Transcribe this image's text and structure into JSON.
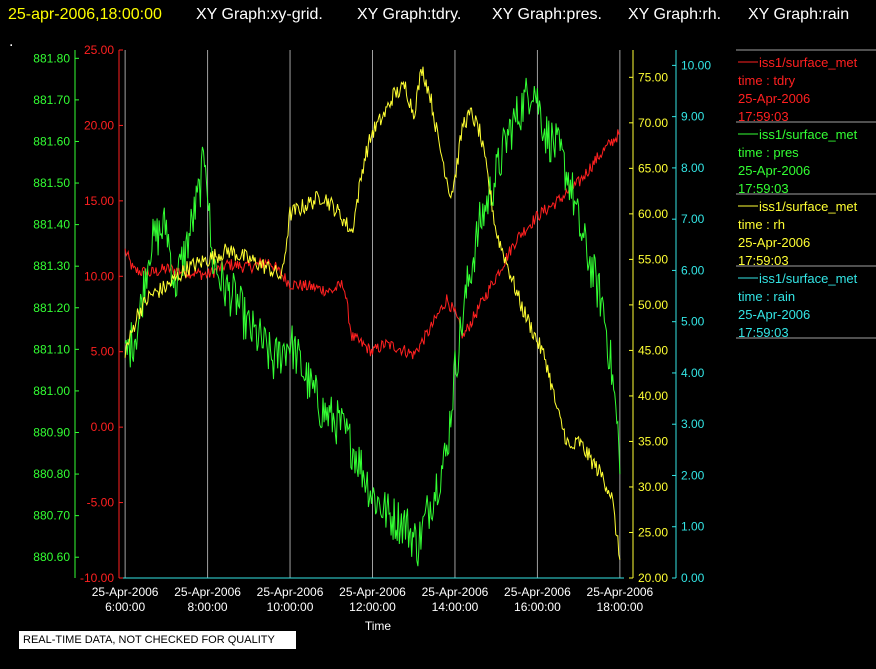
{
  "header": {
    "date": "25-apr-2006,18:00:00",
    "graphs": [
      "XY Graph:xy-grid.",
      "XY Graph:tdry.",
      "XY Graph:pres.",
      "XY Graph:rh.",
      "XY Graph:rain"
    ],
    "dot": "."
  },
  "footer": {
    "note": "REAL-TIME DATA, NOT CHECKED FOR QUALITY"
  },
  "colors": {
    "tdry": "#ff2020",
    "pres": "#33ff33",
    "rh": "#ffff33",
    "rain": "#33e5e5",
    "grid": "#a0a0a0"
  },
  "chart_data": {
    "type": "line",
    "xlabel": "Time",
    "x_ticks": [
      "25-Apr-2006 6:00:00",
      "25-Apr-2006 8:00:00",
      "25-Apr-2006 10:00:00",
      "25-Apr-2006 12:00:00",
      "25-Apr-2006 14:00:00",
      "25-Apr-2006 16:00:00",
      "25-Apr-2006 18:00:00"
    ],
    "x_hours": [
      6,
      8,
      10,
      12,
      14,
      16,
      18
    ],
    "xlim": [
      5.9,
      18.1
    ],
    "axes": {
      "pres": {
        "ticks": [
          "880.60",
          "880.70",
          "880.80",
          "880.90",
          "881.00",
          "881.10",
          "881.20",
          "881.30",
          "881.40",
          "881.50",
          "881.60",
          "881.70",
          "881.80"
        ],
        "lim": [
          880.55,
          881.82
        ]
      },
      "tdry": {
        "ticks": [
          "-10.00",
          "-5.00",
          "0.00",
          "5.00",
          "10.00",
          "15.00",
          "20.00",
          "25.00"
        ],
        "lim": [
          -10,
          25
        ]
      },
      "rh": {
        "ticks": [
          "20.00",
          "25.00",
          "30.00",
          "35.00",
          "40.00",
          "45.00",
          "50.00",
          "55.00",
          "60.00",
          "65.00",
          "70.00",
          "75.00"
        ],
        "lim": [
          20,
          78
        ]
      },
      "rain": {
        "ticks": [
          "0.00",
          "1.00",
          "2.00",
          "3.00",
          "4.00",
          "5.00",
          "6.00",
          "7.00",
          "8.00",
          "9.00",
          "10.00"
        ],
        "lim": [
          0,
          10.3
        ]
      }
    },
    "series": [
      {
        "name": "iss1/surface_met",
        "key": "tdry",
        "legend": [
          "iss1/surface_met",
          "time : tdry",
          "25-Apr-2006",
          "17:59:03"
        ],
        "points": [
          [
            6,
            11.7
          ],
          [
            6.2,
            10.4
          ],
          [
            6.6,
            10.2
          ],
          [
            7,
            10.5
          ],
          [
            7.5,
            10.3
          ],
          [
            8,
            10.1
          ],
          [
            8.5,
            10.8
          ],
          [
            9,
            10.6
          ],
          [
            9.5,
            11.0
          ],
          [
            10,
            9.5
          ],
          [
            10.5,
            9.3
          ],
          [
            11,
            9.0
          ],
          [
            11.3,
            9.5
          ],
          [
            11.5,
            6.0
          ],
          [
            12,
            5.0
          ],
          [
            12.3,
            5.5
          ],
          [
            12.6,
            5.3
          ],
          [
            13,
            4.8
          ],
          [
            13.4,
            6.5
          ],
          [
            13.8,
            8.5
          ],
          [
            14,
            7.5
          ],
          [
            14.2,
            6.0
          ],
          [
            14.5,
            7.5
          ],
          [
            15,
            10.0
          ],
          [
            15.5,
            12.5
          ],
          [
            16,
            14.0
          ],
          [
            16.5,
            15.0
          ],
          [
            17,
            16.2
          ],
          [
            17.5,
            18.0
          ],
          [
            18,
            19.5
          ]
        ]
      },
      {
        "name": "iss1/surface_met",
        "key": "pres",
        "legend": [
          "iss1/surface_met",
          "time : pres",
          "25-Apr-2006",
          "17:59:03"
        ],
        "points": [
          [
            6,
            881.08
          ],
          [
            6.3,
            881.15
          ],
          [
            6.6,
            881.35
          ],
          [
            7,
            881.4
          ],
          [
            7.2,
            881.25
          ],
          [
            7.5,
            881.35
          ],
          [
            7.8,
            881.48
          ],
          [
            7.95,
            881.58
          ],
          [
            8.1,
            881.32
          ],
          [
            8.4,
            881.25
          ],
          [
            8.7,
            881.22
          ],
          [
            9,
            881.15
          ],
          [
            9.3,
            881.12
          ],
          [
            9.6,
            881.07
          ],
          [
            10,
            881.12
          ],
          [
            10.4,
            881.03
          ],
          [
            10.8,
            880.95
          ],
          [
            11.2,
            880.92
          ],
          [
            11.6,
            880.85
          ],
          [
            12,
            880.75
          ],
          [
            12.4,
            880.7
          ],
          [
            12.8,
            880.68
          ],
          [
            13.1,
            880.63
          ],
          [
            13.4,
            880.73
          ],
          [
            13.8,
            880.85
          ],
          [
            14,
            881.05
          ],
          [
            14.3,
            881.25
          ],
          [
            14.6,
            881.4
          ],
          [
            15,
            881.52
          ],
          [
            15.3,
            881.62
          ],
          [
            15.6,
            881.68
          ],
          [
            15.9,
            881.74
          ],
          [
            16.2,
            881.62
          ],
          [
            16.5,
            881.58
          ],
          [
            16.8,
            881.5
          ],
          [
            17,
            881.4
          ],
          [
            17.3,
            881.3
          ],
          [
            17.6,
            881.2
          ],
          [
            17.8,
            881.05
          ],
          [
            17.95,
            880.9
          ],
          [
            18,
            880.8
          ]
        ]
      },
      {
        "name": "iss1/surface_met",
        "key": "rh",
        "legend": [
          "iss1/surface_met",
          "time : rh",
          "25-Apr-2006",
          "17:59:03"
        ],
        "points": [
          [
            6,
            45
          ],
          [
            6.1,
            46
          ],
          [
            6.3,
            49
          ],
          [
            6.6,
            51
          ],
          [
            7,
            52
          ],
          [
            7.5,
            54
          ],
          [
            8,
            55
          ],
          [
            8.5,
            56
          ],
          [
            9,
            55
          ],
          [
            9.5,
            54
          ],
          [
            9.8,
            53
          ],
          [
            10,
            60
          ],
          [
            10.4,
            61
          ],
          [
            10.8,
            62
          ],
          [
            11.2,
            60
          ],
          [
            11.5,
            58
          ],
          [
            11.8,
            66
          ],
          [
            12,
            69
          ],
          [
            12.3,
            71
          ],
          [
            12.5,
            73
          ],
          [
            12.8,
            74
          ],
          [
            13,
            71
          ],
          [
            13.2,
            76
          ],
          [
            13.4,
            73
          ],
          [
            13.6,
            68
          ],
          [
            13.9,
            62
          ],
          [
            14,
            64
          ],
          [
            14.2,
            70
          ],
          [
            14.4,
            71
          ],
          [
            14.6,
            69
          ],
          [
            14.8,
            64
          ],
          [
            15,
            58
          ],
          [
            15.3,
            54
          ],
          [
            15.6,
            50
          ],
          [
            15.9,
            47
          ],
          [
            16.2,
            44
          ],
          [
            16.5,
            38
          ],
          [
            16.8,
            34
          ],
          [
            17,
            35
          ],
          [
            17.3,
            33
          ],
          [
            17.6,
            31
          ],
          [
            17.8,
            29
          ],
          [
            18,
            22
          ]
        ]
      },
      {
        "name": "iss1/surface_met",
        "key": "rain",
        "legend": [
          "iss1/surface_met",
          "time : rain",
          "25-Apr-2006",
          "17:59:03"
        ],
        "points": [
          [
            6,
            0
          ],
          [
            18,
            0
          ]
        ]
      }
    ]
  }
}
